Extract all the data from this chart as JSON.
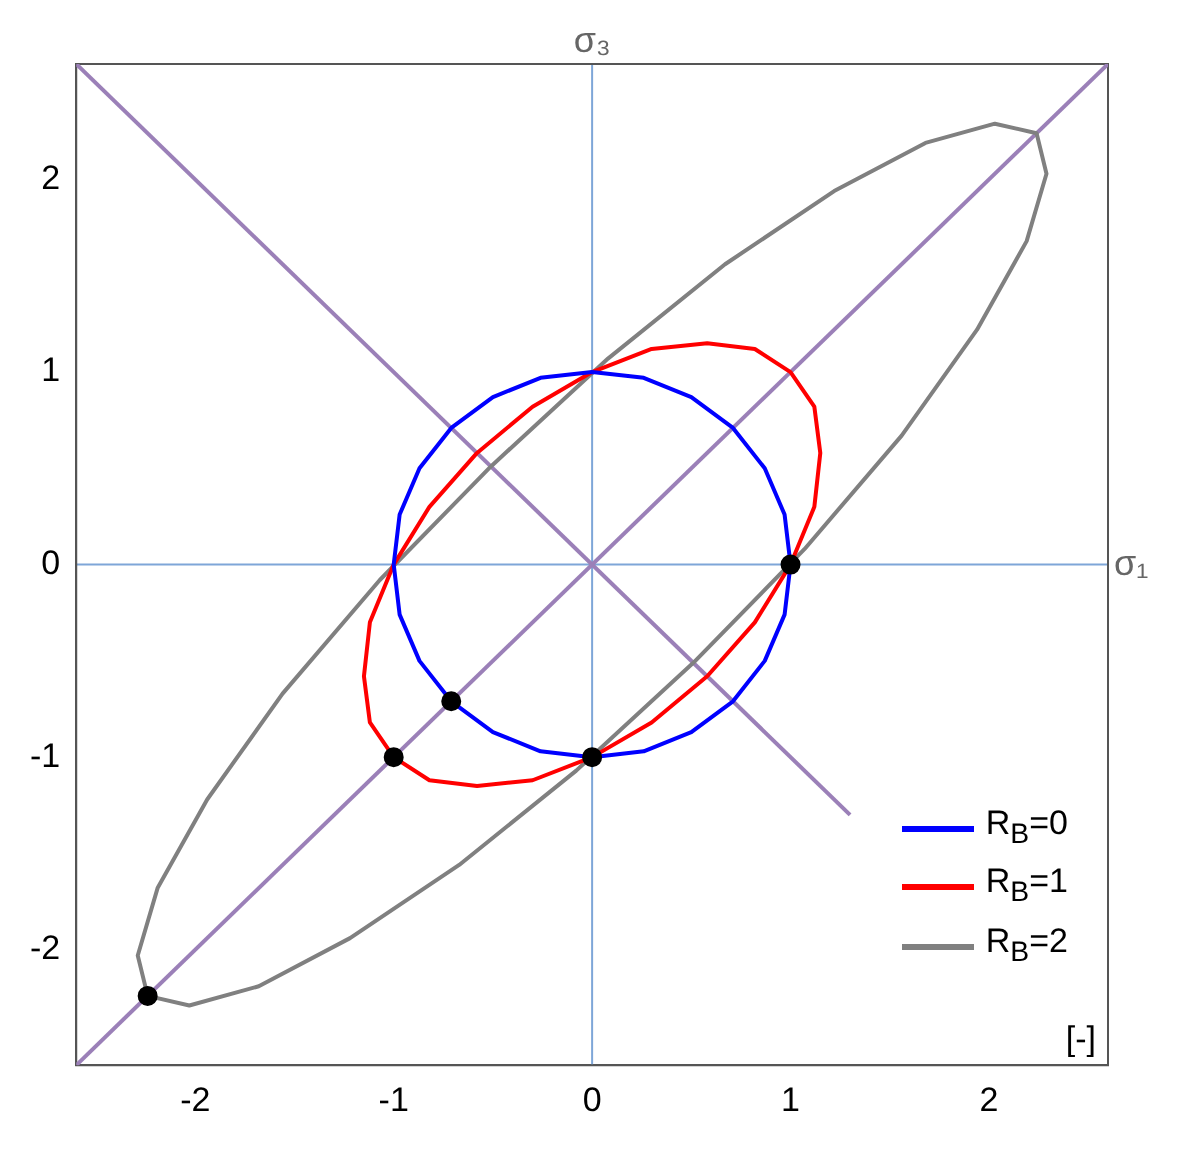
{
  "chart_data": {
    "type": "line",
    "xlim": [
      -2.6,
      2.6
    ],
    "ylim": [
      -2.6,
      2.6
    ],
    "xticks": [
      -2,
      -1,
      0,
      1,
      2
    ],
    "yticks": [
      -2,
      -1,
      0,
      1,
      2
    ],
    "grid": false,
    "legend": "bottom right",
    "annotations": [
      "[-]"
    ],
    "ref_lines": [
      {
        "axis": "x",
        "value": 0,
        "label": "σ₃",
        "color": "#7ea6d8"
      },
      {
        "axis": "y",
        "value": 0,
        "label": "σ₁",
        "color": "#7ea6d8"
      }
    ],
    "series": [
      {
        "name": "R$_{B}$=0",
        "color": "#0000ff",
        "type": "line",
        "marker": "none",
        "x": [
          1,
          0.97,
          0.87,
          0.71,
          0.5,
          0.26,
          0,
          -0.26,
          -0.5,
          -0.71,
          -0.87,
          -0.97,
          -1,
          -0.97,
          -0.87,
          -0.71,
          -0.5,
          -0.26,
          0,
          0.26,
          0.5,
          0.71,
          0.87,
          0.97,
          1,
          0.97
        ],
        "values": [
          0,
          0.26,
          0.5,
          0.71,
          0.87,
          0.97,
          1,
          0.97,
          0.87,
          0.71,
          0.5,
          0.26,
          0,
          -0.26,
          -0.5,
          -0.71,
          -0.87,
          -0.97,
          -1,
          -0.97,
          -0.87,
          -0.71,
          -0.5,
          -0.26,
          0,
          0.26
        ]
      },
      {
        "name": "R$_{B}$=1",
        "color": "#ff0000",
        "type": "line",
        "marker": "none",
        "x": [
          1,
          0.82,
          0.58,
          0.3,
          0,
          -0.3,
          -0.58,
          -0.82,
          -1,
          -1.12,
          -1.15,
          -1.12,
          -1,
          -0.82,
          -0.58,
          -0.3,
          0,
          0.3,
          0.58,
          0.82,
          1,
          1.12,
          1.15,
          1.12,
          1,
          0.82
        ],
        "values": [
          1,
          1.12,
          1.15,
          1.12,
          1,
          0.82,
          0.58,
          0.3,
          0,
          -0.3,
          -0.58,
          -0.82,
          -1,
          -1.12,
          -1.15,
          -1.12,
          -1,
          -0.82,
          -0.58,
          -0.3,
          0,
          0.3,
          0.58,
          0.82,
          1,
          1.12
        ]
      },
      {
        "name": "R$_{B}$=2",
        "color": "#808080",
        "type": "line",
        "marker": "none",
        "x": [
          2.24,
          2.03,
          1.68,
          1.22,
          0.67,
          0.08,
          -0.51,
          -1.07,
          -1.56,
          -1.94,
          -2.19,
          -2.29,
          -2.24,
          -2.03,
          -1.68,
          -1.22,
          -0.67,
          -0.08,
          0.51,
          1.07,
          1.56,
          1.94,
          2.19,
          2.29,
          2.24,
          2.03
        ],
        "values": [
          2.24,
          2.29,
          2.19,
          1.94,
          1.56,
          1.07,
          0.51,
          -0.08,
          -0.67,
          -1.22,
          -1.68,
          -2.03,
          -2.24,
          -2.29,
          -2.19,
          -1.94,
          -1.56,
          -1.07,
          -0.51,
          0.08,
          0.67,
          1.22,
          1.68,
          2.03,
          2.24,
          2.29
        ]
      },
      {
        "color": "#9b80b8",
        "type": "line",
        "marker": "none",
        "x": [
          -2.6,
          2.6
        ],
        "values": [
          -2.6,
          2.6
        ]
      },
      {
        "color": "#9b80b8",
        "type": "line",
        "marker": "none",
        "x": [
          -2.6,
          1.3
        ],
        "values": [
          2.6,
          -1.3
        ]
      },
      {
        "color": "#000000",
        "type": "scatter",
        "marker": "circle",
        "x": [
          1,
          0,
          -0.71,
          -1,
          -2.24
        ],
        "values": [
          0,
          -1,
          -0.71,
          -1,
          -2.24
        ]
      }
    ]
  }
}
